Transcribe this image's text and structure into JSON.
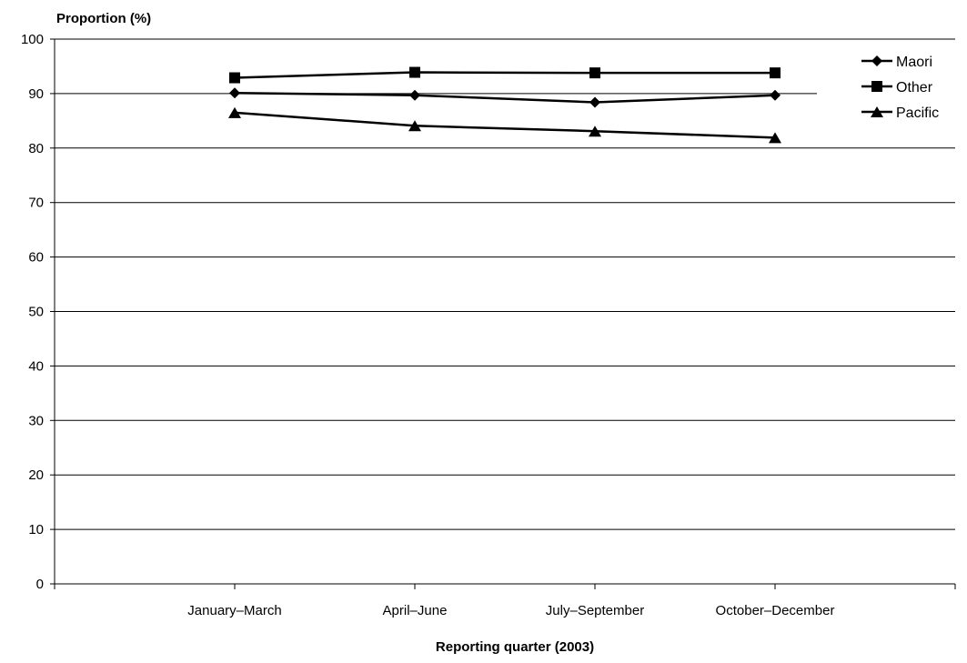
{
  "chart_data": {
    "type": "line",
    "title": "",
    "ylabel": "Proportion (%)",
    "xlabel": "Reporting quarter (2003)",
    "categories": [
      "January–March",
      "April–June",
      "July–September",
      "October–December"
    ],
    "ylim": [
      0,
      100
    ],
    "yticks": [
      0,
      10,
      20,
      30,
      40,
      50,
      60,
      70,
      80,
      90,
      100
    ],
    "grid": "horizontal",
    "legend_position": "top-right",
    "series": [
      {
        "name": "Maori",
        "marker": "diamond",
        "values": [
          90.1,
          89.7,
          88.4,
          89.7
        ]
      },
      {
        "name": "Other",
        "marker": "square",
        "values": [
          92.9,
          93.9,
          93.8,
          93.8
        ]
      },
      {
        "name": "Pacific",
        "marker": "triangle",
        "values": [
          86.5,
          84.1,
          83.1,
          81.9
        ]
      }
    ],
    "colors": {
      "line": "#000000",
      "grid": "#000000",
      "background": "#ffffff"
    }
  }
}
